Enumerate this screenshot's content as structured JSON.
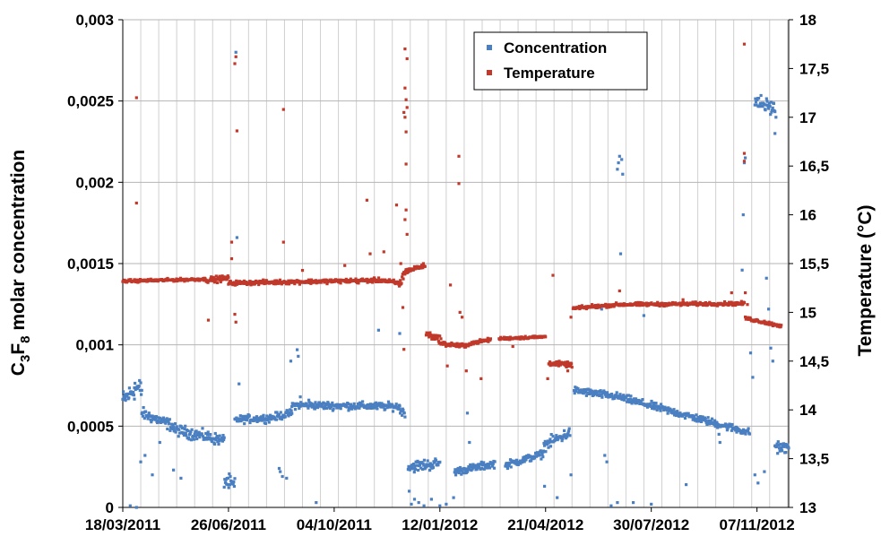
{
  "chart_data": {
    "type": "scatter",
    "grid": true,
    "legend_position": "top-right",
    "x_axis": {
      "start": "18/03/2011",
      "end": "07/12/2012",
      "tick_labels": [
        "18/03/2011",
        "26/06/2011",
        "04/10/2011",
        "12/01/2012",
        "21/04/2012",
        "30/07/2012",
        "07/11/2012"
      ]
    },
    "y_left": {
      "label_parts": [
        "C",
        "3",
        "F",
        "8",
        " molar concentration"
      ],
      "range": [
        0,
        0.003
      ],
      "tick_values": [
        0,
        0.0005,
        0.001,
        0.0015,
        0.002,
        0.0025,
        0.003
      ],
      "tick_labels": [
        "0",
        "0,0005",
        "0,001",
        "0,0015",
        "0,002",
        "0,0025",
        "0,003"
      ]
    },
    "y_right": {
      "label": "Temperature (°C)",
      "range": [
        13,
        18
      ],
      "tick_values": [
        13,
        13.5,
        14,
        14.5,
        15,
        15.5,
        16,
        16.5,
        17,
        17.5,
        18
      ],
      "tick_labels": [
        "13",
        "13,5",
        "14",
        "14,5",
        "15",
        "15,5",
        "16",
        "16,5",
        "17",
        "17,5",
        "18"
      ]
    },
    "series": [
      {
        "name": "Concentration",
        "axis": "left",
        "color": "#4a7fc1",
        "segments": [
          [
            "18/03/2011",
            "29/03/2011",
            0.00066,
            0.00072,
            5e-05
          ],
          [
            "29/03/2011",
            "05/04/2011",
            0.00074,
            0.00072,
            6e-05
          ],
          [
            "05/04/2011",
            "05/05/2011",
            0.00058,
            0.0005,
            3e-05
          ],
          [
            "05/05/2011",
            "22/06/2011",
            0.00048,
            0.00041,
            3e-05
          ],
          [
            "22/06/2011",
            "02/07/2011",
            0.00017,
            0.00013,
            4e-05
          ],
          [
            "02/07/2011",
            "04/08/2011",
            0.00054,
            0.00055,
            2e-05
          ],
          [
            "04/08/2011",
            "25/08/2011",
            0.00055,
            0.00058,
            2e-05
          ],
          [
            "25/08/2011",
            "05/12/2011",
            0.00063,
            0.00062,
            2e-05
          ],
          [
            "05/12/2011",
            "10/12/2011",
            0.0006,
            0.00058,
            2e-05
          ],
          [
            "13/12/2011",
            "12/01/2012",
            0.00025,
            0.00027,
            3e-05
          ],
          [
            "26/01/2012",
            "04/03/2012",
            0.00022,
            0.00027,
            2e-05
          ],
          [
            "14/03/2012",
            "19/04/2012",
            0.00026,
            0.00033,
            2e-05
          ],
          [
            "19/04/2012",
            "14/05/2012",
            0.00038,
            0.00046,
            3e-05
          ],
          [
            "18/05/2012",
            "29/06/2012",
            0.00072,
            0.00068,
            2e-05
          ],
          [
            "29/06/2012",
            "31/10/2012",
            0.00068,
            0.00046,
            2e-05
          ],
          [
            "05/11/2012",
            "24/11/2012",
            0.0025,
            0.00245,
            4e-05
          ],
          [
            "24/11/2012",
            "07/12/2012",
            0.00038,
            0.00036,
            3e-05
          ]
        ],
        "points": [
          [
            "25/03/2011",
            1e-05
          ],
          [
            "31/03/2011",
            0
          ],
          [
            "04/04/2011",
            0.00028
          ],
          [
            "08/04/2011",
            0.00032
          ],
          [
            "15/04/2011",
            0.0002
          ],
          [
            "22/04/2011",
            0.0004
          ],
          [
            "05/05/2011",
            0.00023
          ],
          [
            "12/05/2011",
            0.00018
          ],
          [
            "03/07/2011",
            0.0028
          ],
          [
            "04/07/2011",
            0.00166
          ],
          [
            "06/07/2011",
            0.00076
          ],
          [
            "13/08/2011",
            0.00024
          ],
          [
            "14/08/2011",
            0.00022
          ],
          [
            "16/08/2011",
            0.00019
          ],
          [
            "20/08/2011",
            0.00018
          ],
          [
            "24/08/2011",
            0.0009
          ],
          [
            "30/08/2011",
            0.00097
          ],
          [
            "31/08/2011",
            0.00093
          ],
          [
            "02/09/2011",
            0.00068
          ],
          [
            "10/09/2011",
            0.00066
          ],
          [
            "17/09/2011",
            3e-05
          ],
          [
            "15/11/2011",
            0.00109
          ],
          [
            "05/12/2011",
            0.00107
          ],
          [
            "14/12/2011",
            0.0001
          ],
          [
            "16/12/2011",
            2e-05
          ],
          [
            "19/12/2011",
            5e-05
          ],
          [
            "23/12/2011",
            3e-05
          ],
          [
            "28/12/2011",
            1e-05
          ],
          [
            "04/01/2012",
            5e-05
          ],
          [
            "12/01/2012",
            1e-05
          ],
          [
            "18/01/2012",
            2e-05
          ],
          [
            "25/01/2012",
            6e-05
          ],
          [
            "07/02/2012",
            0.00058
          ],
          [
            "09/02/2012",
            0.0004
          ],
          [
            "02/05/2012",
            6e-05
          ],
          [
            "20/04/2012",
            0.00013
          ],
          [
            "15/05/2012",
            0.0002
          ],
          [
            "13/06/2012",
            0.00122
          ],
          [
            "16/06/2012",
            0.00032
          ],
          [
            "18/06/2012",
            0.00028
          ],
          [
            "22/06/2012",
            1e-05
          ],
          [
            "28/06/2012",
            3e-05
          ],
          [
            "01/07/2012",
            0.00156
          ],
          [
            "02/07/2012",
            0.00214
          ],
          [
            "03/07/2012",
            0.00205
          ],
          [
            "28/06/2012",
            0.00208
          ],
          [
            "29/06/2012",
            0.00212
          ],
          [
            "30/06/2012",
            0.00216
          ],
          [
            "13/07/2012",
            3e-05
          ],
          [
            "23/07/2012",
            0.00118
          ],
          [
            "30/07/2012",
            2e-05
          ],
          [
            "01/09/2012",
            0.00014
          ],
          [
            "02/10/2012",
            0.00045
          ],
          [
            "03/10/2012",
            0.0004
          ],
          [
            "24/10/2012",
            0.00146
          ],
          [
            "25/10/2012",
            0.0018
          ],
          [
            "26/10/2012",
            0.00212
          ],
          [
            "27/10/2012",
            0.00215
          ],
          [
            "01/11/2012",
            0.00095
          ],
          [
            "03/11/2012",
            0.0008
          ],
          [
            "05/11/2012",
            0.0002
          ],
          [
            "08/11/2012",
            0.00015
          ],
          [
            "14/11/2012",
            0.00022
          ],
          [
            "16/11/2012",
            0.00141
          ],
          [
            "18/11/2012",
            0.00122
          ],
          [
            "20/11/2012",
            0.00098
          ],
          [
            "22/11/2012",
            0.0009
          ],
          [
            "24/11/2012",
            0.0023
          ],
          [
            "25/11/2012",
            0.0024
          ]
        ]
      },
      {
        "name": "Temperature",
        "axis": "right",
        "color": "#c0392b",
        "segments": [
          [
            "18/03/2011",
            "05/06/2011",
            15.32,
            15.34,
            0.012
          ],
          [
            "05/06/2011",
            "26/06/2011",
            15.33,
            15.35,
            0.025
          ],
          [
            "26/06/2011",
            "21/11/2011",
            15.3,
            15.33,
            0.018
          ],
          [
            "21/11/2011",
            "04/12/2011",
            15.32,
            15.3,
            0.02
          ],
          [
            "04/12/2011",
            "10/12/2011",
            15.28,
            15.4,
            0.05
          ],
          [
            "10/12/2011",
            "29/12/2011",
            15.42,
            15.48,
            0.02
          ],
          [
            "30/12/2011",
            "13/01/2012",
            14.78,
            14.72,
            0.03
          ],
          [
            "13/01/2012",
            "08/02/2012",
            14.68,
            14.65,
            0.02
          ],
          [
            "08/02/2012",
            "29/02/2012",
            14.68,
            14.72,
            0.015
          ],
          [
            "08/03/2012",
            "21/04/2012",
            14.73,
            14.75,
            0.012
          ],
          [
            "24/04/2012",
            "16/05/2012",
            14.48,
            14.46,
            0.02
          ],
          [
            "17/05/2012",
            "30/06/2012",
            15.04,
            15.08,
            0.015
          ],
          [
            "30/06/2012",
            "26/10/2012",
            15.08,
            15.09,
            0.015
          ],
          [
            "27/10/2012",
            "30/11/2012",
            14.94,
            14.86,
            0.015
          ]
        ],
        "points": [
          [
            "31/03/2011",
            17.2
          ],
          [
            "31/03/2011",
            16.12
          ],
          [
            "29/06/2011",
            15.55
          ],
          [
            "29/06/2011",
            15.72
          ],
          [
            "02/07/2011",
            17.55
          ],
          [
            "03/07/2011",
            17.62
          ],
          [
            "04/07/2011",
            16.86
          ],
          [
            "02/07/2011",
            14.98
          ],
          [
            "03/07/2011",
            14.9
          ],
          [
            "07/06/2011",
            14.92
          ],
          [
            "17/08/2011",
            17.08
          ],
          [
            "17/08/2011",
            15.72
          ],
          [
            "04/09/2011",
            15.43
          ],
          [
            "14/10/2011",
            15.48
          ],
          [
            "27/10/2011",
            15.3
          ],
          [
            "04/11/2011",
            16.15
          ],
          [
            "07/11/2011",
            15.6
          ],
          [
            "20/11/2011",
            15.62
          ],
          [
            "02/12/2011",
            16.1
          ],
          [
            "06/12/2011",
            15.5
          ],
          [
            "08/12/2011",
            15.05
          ],
          [
            "09/12/2011",
            14.62
          ],
          [
            "10/12/2011",
            15.95
          ],
          [
            "10/12/2011",
            17.7
          ],
          [
            "10/12/2011",
            17.3
          ],
          [
            "10/12/2011",
            17.0
          ],
          [
            "11/12/2011",
            16.85
          ],
          [
            "11/12/2011",
            16.52
          ],
          [
            "11/12/2011",
            16.05
          ],
          [
            "12/12/2011",
            15.8
          ],
          [
            "12/12/2011",
            17.6
          ],
          [
            "11/12/2011",
            17.18
          ],
          [
            "12/12/2011",
            17.1
          ],
          [
            "09/12/2011",
            17.05
          ],
          [
            "19/01/2012",
            14.45
          ],
          [
            "22/01/2012",
            15.28
          ],
          [
            "30/01/2012",
            16.32
          ],
          [
            "30/01/2012",
            16.6
          ],
          [
            "31/01/2012",
            15.0
          ],
          [
            "02/02/2012",
            14.95
          ],
          [
            "06/02/2012",
            14.4
          ],
          [
            "20/02/2012",
            14.32
          ],
          [
            "21/03/2012",
            14.65
          ],
          [
            "23/04/2012",
            14.32
          ],
          [
            "28/04/2012",
            15.38
          ],
          [
            "12/05/2012",
            14.4
          ],
          [
            "15/05/2012",
            14.95
          ],
          [
            "04/06/2012",
            15.08
          ],
          [
            "30/06/2012",
            15.22
          ],
          [
            "01/07/2012",
            15.08
          ],
          [
            "29/08/2012",
            15.13
          ],
          [
            "14/10/2012",
            15.2
          ],
          [
            "26/10/2012",
            17.75
          ],
          [
            "26/10/2012",
            16.63
          ],
          [
            "26/10/2012",
            16.55
          ],
          [
            "27/10/2012",
            15.2
          ],
          [
            "29/10/2012",
            15.08
          ]
        ]
      }
    ]
  }
}
